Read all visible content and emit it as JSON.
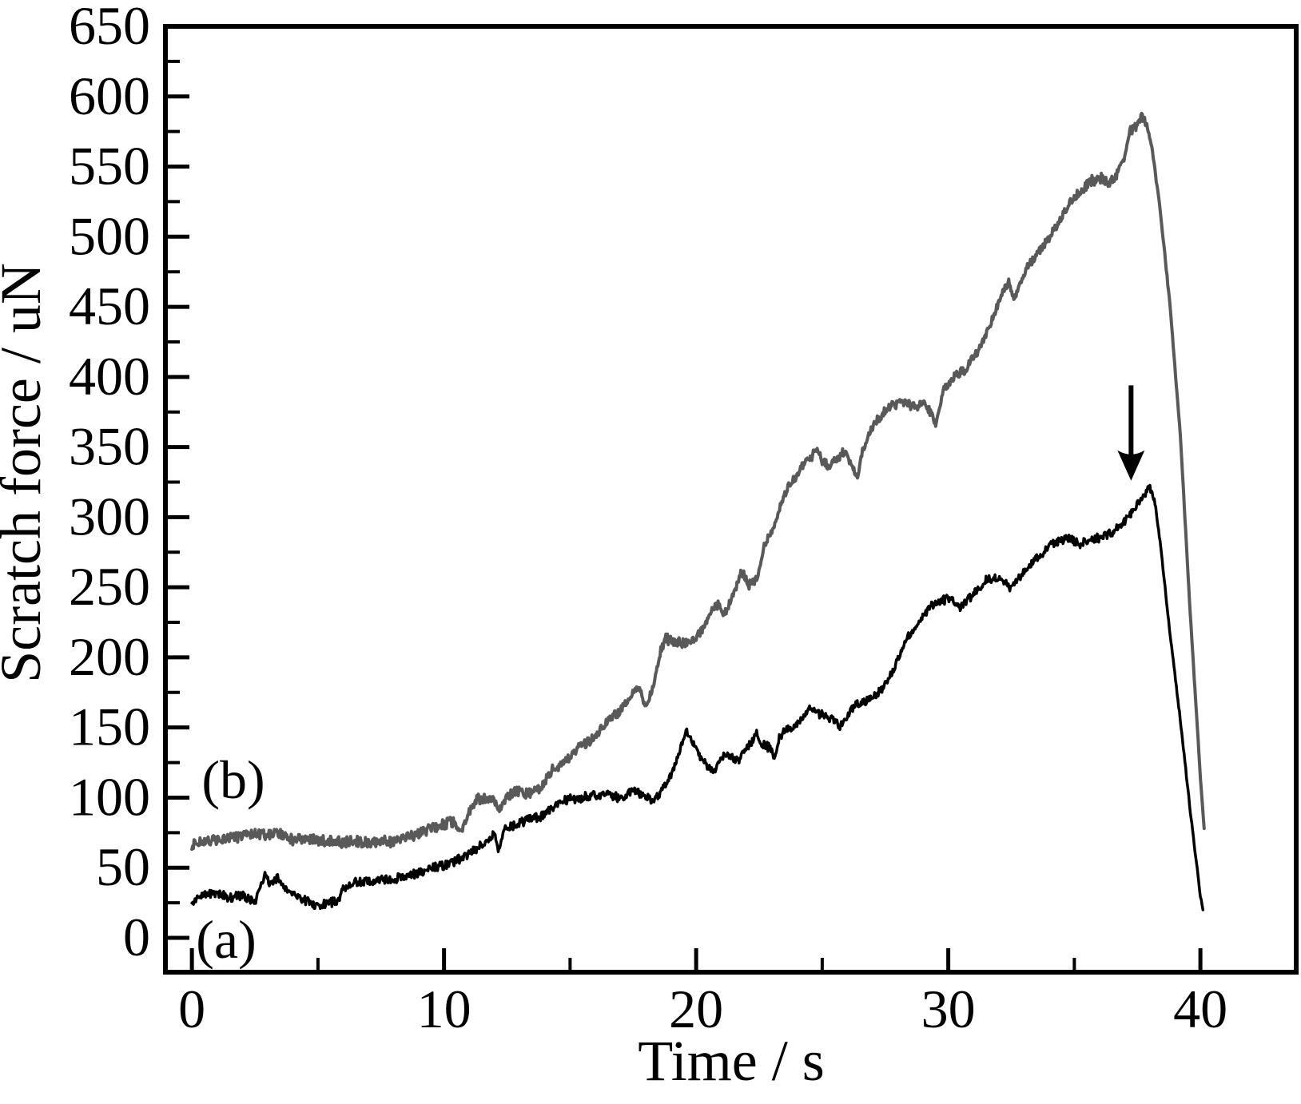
{
  "figure": {
    "background_color": "#ffffff",
    "axis_color": "#000000"
  },
  "chart_data": {
    "type": "line",
    "title": "",
    "xlabel": "Time / s",
    "ylabel": "Scratch force / uN",
    "xlim": [
      -1.05,
      43.8
    ],
    "ylim": [
      -24.5,
      650
    ],
    "grid": false,
    "box_frame": true,
    "legend_position": "none",
    "x_ticks_major": {
      "values": [
        0,
        10,
        20,
        30,
        40
      ],
      "labels": [
        "0",
        "10",
        "20",
        "30",
        "40"
      ]
    },
    "x_ticks_minor": [
      5,
      15,
      25,
      35
    ],
    "y_ticks_major": {
      "values": [
        0,
        50,
        100,
        150,
        200,
        250,
        300,
        350,
        400,
        450,
        500,
        550,
        600,
        650
      ],
      "labels": [
        "0",
        "50",
        "100",
        "150",
        "200",
        "250",
        "300",
        "350",
        "400",
        "450",
        "500",
        "550",
        "600",
        "650"
      ]
    },
    "y_ticks_minor": [
      25,
      75,
      125,
      175,
      225,
      275,
      325,
      375,
      425,
      475,
      525,
      575,
      625
    ],
    "series": [
      {
        "name": "(a)",
        "color": "#000000",
        "line_width": 3.5,
        "noise_amplitude": 3.5,
        "points": [
          [
            0,
            24
          ],
          [
            0.4,
            30
          ],
          [
            0.8,
            32
          ],
          [
            1.2,
            30
          ],
          [
            1.6,
            29
          ],
          [
            2,
            30
          ],
          [
            2.5,
            25
          ],
          [
            2.9,
            45
          ],
          [
            3.1,
            38
          ],
          [
            3.4,
            43
          ],
          [
            3.7,
            36
          ],
          [
            4,
            31
          ],
          [
            4.6,
            26
          ],
          [
            5,
            22
          ],
          [
            5.4,
            25
          ],
          [
            5.8,
            26
          ],
          [
            6,
            35
          ],
          [
            6.4,
            39
          ],
          [
            7,
            40
          ],
          [
            7.5,
            41
          ],
          [
            8,
            42
          ],
          [
            8.5,
            44
          ],
          [
            9.1,
            47
          ],
          [
            9.6,
            50
          ],
          [
            10.1,
            52
          ],
          [
            10.7,
            57
          ],
          [
            11.1,
            61
          ],
          [
            11.7,
            69
          ],
          [
            12,
            75
          ],
          [
            12.15,
            62
          ],
          [
            12.4,
            78
          ],
          [
            12.8,
            80
          ],
          [
            13.3,
            84
          ],
          [
            13.8,
            86
          ],
          [
            14.3,
            93
          ],
          [
            14.8,
            98
          ],
          [
            15.4,
            100
          ],
          [
            15.9,
            101
          ],
          [
            16.4,
            102
          ],
          [
            17,
            100
          ],
          [
            17.5,
            105
          ],
          [
            18,
            101
          ],
          [
            18.3,
            97
          ],
          [
            18.6,
            104
          ],
          [
            19,
            116
          ],
          [
            19.3,
            130
          ],
          [
            19.6,
            149
          ],
          [
            19.9,
            138
          ],
          [
            20.1,
            131
          ],
          [
            20.5,
            121
          ],
          [
            20.7,
            118
          ],
          [
            21,
            129
          ],
          [
            21.4,
            130
          ],
          [
            21.7,
            125
          ],
          [
            21.9,
            135
          ],
          [
            22.2,
            139
          ],
          [
            22.4,
            147
          ],
          [
            22.6,
            138
          ],
          [
            23,
            135
          ],
          [
            23.1,
            127
          ],
          [
            23.3,
            143
          ],
          [
            23.5,
            147
          ],
          [
            24,
            153
          ],
          [
            24.5,
            163
          ],
          [
            24.8,
            160
          ],
          [
            25.2,
            158
          ],
          [
            25.7,
            151
          ],
          [
            26,
            158
          ],
          [
            26.3,
            166
          ],
          [
            26.9,
            170
          ],
          [
            27.4,
            178
          ],
          [
            27.8,
            190
          ],
          [
            28.3,
            212
          ],
          [
            28.9,
            228
          ],
          [
            29.4,
            238
          ],
          [
            30,
            242
          ],
          [
            30.5,
            236
          ],
          [
            31,
            245
          ],
          [
            31.5,
            255
          ],
          [
            32,
            257
          ],
          [
            32.5,
            249
          ],
          [
            33.1,
            264
          ],
          [
            33.6,
            272
          ],
          [
            34.1,
            281
          ],
          [
            34.7,
            285
          ],
          [
            35.2,
            281
          ],
          [
            35.7,
            284
          ],
          [
            36.3,
            287
          ],
          [
            36.8,
            293
          ],
          [
            37.3,
            304
          ],
          [
            37.7,
            315
          ],
          [
            38,
            321
          ],
          [
            38.2,
            310
          ],
          [
            38.4,
            283
          ],
          [
            38.6,
            250
          ],
          [
            38.8,
            216
          ],
          [
            39.2,
            156
          ],
          [
            39.6,
            90
          ],
          [
            40,
            30
          ],
          [
            40.1,
            20
          ]
        ]
      },
      {
        "name": "(b)",
        "color": "#595959",
        "line_width": 4,
        "noise_amplitude": 4,
        "points": [
          [
            0,
            67
          ],
          [
            0.5,
            68
          ],
          [
            1,
            70
          ],
          [
            1.6,
            71
          ],
          [
            2,
            72
          ],
          [
            2.3,
            75
          ],
          [
            2.6,
            74
          ],
          [
            3,
            73
          ],
          [
            3.3,
            76
          ],
          [
            3.7,
            72
          ],
          [
            4,
            70
          ],
          [
            4.5,
            71
          ],
          [
            5,
            69
          ],
          [
            5.5,
            70
          ],
          [
            6,
            68
          ],
          [
            6.5,
            69
          ],
          [
            7,
            68
          ],
          [
            7.5,
            69
          ],
          [
            8,
            68
          ],
          [
            8.5,
            72
          ],
          [
            9,
            74
          ],
          [
            9.5,
            78
          ],
          [
            10,
            81
          ],
          [
            10.4,
            83
          ],
          [
            10.7,
            76
          ],
          [
            11,
            90
          ],
          [
            11.3,
            99
          ],
          [
            11.6,
            100
          ],
          [
            12,
            97
          ],
          [
            12.2,
            91
          ],
          [
            12.5,
            100
          ],
          [
            12.8,
            105
          ],
          [
            13.3,
            103
          ],
          [
            13.8,
            106
          ],
          [
            14.3,
            120
          ],
          [
            14.8,
            125
          ],
          [
            15.4,
            137
          ],
          [
            15.9,
            142
          ],
          [
            16.4,
            153
          ],
          [
            17,
            162
          ],
          [
            17.4,
            172
          ],
          [
            17.7,
            180
          ],
          [
            18,
            165
          ],
          [
            18.3,
            180
          ],
          [
            18.6,
            205
          ],
          [
            18.8,
            213
          ],
          [
            19.2,
            212
          ],
          [
            19.6,
            210
          ],
          [
            20,
            214
          ],
          [
            20.3,
            222
          ],
          [
            20.6,
            233
          ],
          [
            20.9,
            238
          ],
          [
            21.1,
            230
          ],
          [
            21.5,
            245
          ],
          [
            21.8,
            262
          ],
          [
            22.1,
            252
          ],
          [
            22.4,
            255
          ],
          [
            22.7,
            280
          ],
          [
            23,
            289
          ],
          [
            23.4,
            312
          ],
          [
            23.7,
            323
          ],
          [
            24,
            329
          ],
          [
            24.2,
            337
          ],
          [
            24.5,
            341
          ],
          [
            24.8,
            349
          ],
          [
            25,
            340
          ],
          [
            25.3,
            336
          ],
          [
            25.6,
            342
          ],
          [
            25.9,
            347
          ],
          [
            26.2,
            335
          ],
          [
            26.4,
            329
          ],
          [
            26.6,
            347
          ],
          [
            27,
            365
          ],
          [
            27.4,
            374
          ],
          [
            27.8,
            380
          ],
          [
            28.2,
            383
          ],
          [
            28.6,
            379
          ],
          [
            29,
            381
          ],
          [
            29.3,
            375
          ],
          [
            29.5,
            366
          ],
          [
            29.8,
            390
          ],
          [
            30.3,
            401
          ],
          [
            30.7,
            406
          ],
          [
            31,
            414
          ],
          [
            31.4,
            425
          ],
          [
            31.8,
            444
          ],
          [
            32.1,
            458
          ],
          [
            32.4,
            468
          ],
          [
            32.6,
            455
          ],
          [
            32.9,
            470
          ],
          [
            33.2,
            480
          ],
          [
            33.7,
            491
          ],
          [
            34.2,
            505
          ],
          [
            34.7,
            521
          ],
          [
            35.2,
            532
          ],
          [
            35.7,
            540
          ],
          [
            36.1,
            542
          ],
          [
            36.4,
            538
          ],
          [
            36.7,
            545
          ],
          [
            37,
            556
          ],
          [
            37.2,
            575
          ],
          [
            37.5,
            580
          ],
          [
            37.7,
            586
          ],
          [
            37.9,
            578
          ],
          [
            38.1,
            560
          ],
          [
            38.4,
            520
          ],
          [
            38.8,
            450
          ],
          [
            39.2,
            360
          ],
          [
            39.6,
            230
          ],
          [
            40,
            115
          ],
          [
            40.15,
            78
          ]
        ]
      }
    ],
    "annotations": {
      "series_labels": [
        {
          "text": "(a)",
          "t": 1.35,
          "force": -2
        },
        {
          "text": "(b)",
          "t": 1.65,
          "force": 112
        }
      ],
      "arrow": {
        "t": 37.25,
        "force_from": 394,
        "force_to": 326,
        "color": "#000000"
      }
    }
  }
}
